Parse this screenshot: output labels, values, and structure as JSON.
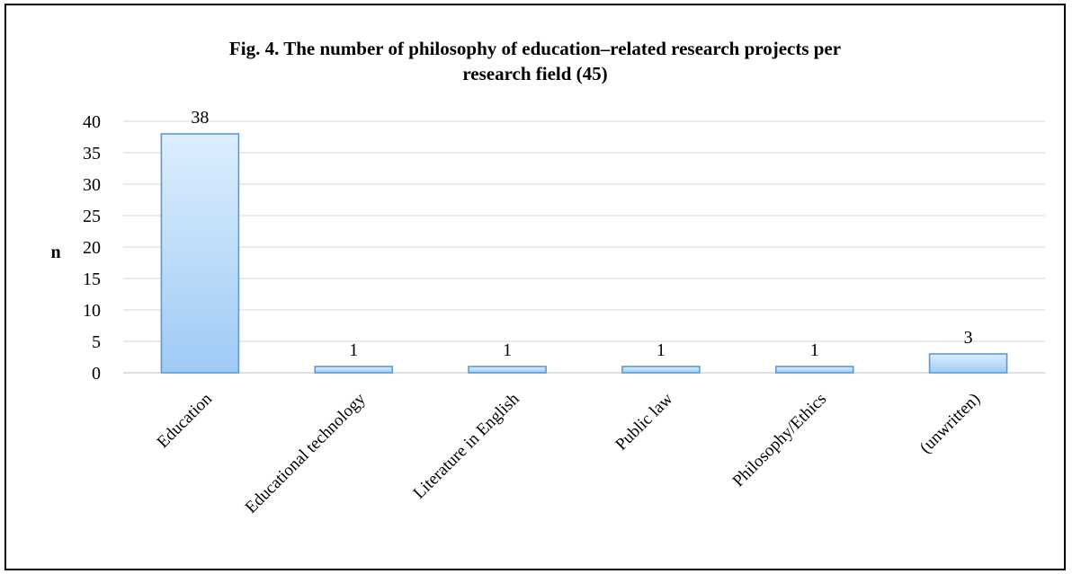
{
  "chart_data": {
    "type": "bar",
    "title": "Fig. 4. The number of philosophy of education–related research projects per research field (45)",
    "title_lines": [
      "Fig. 4. The number of philosophy of education–related research projects per",
      "research field (45)"
    ],
    "xlabel": "",
    "ylabel": "n",
    "ylim": [
      0,
      40
    ],
    "yticks": [
      0,
      5,
      10,
      15,
      20,
      25,
      30,
      35,
      40
    ],
    "categories": [
      "Education",
      "Educational technology",
      "Literature in English",
      "Public law",
      "Philosophy/Ethics",
      "(unwritten)"
    ],
    "values": [
      38,
      1,
      1,
      1,
      1,
      3
    ],
    "grid": true,
    "legend": "none",
    "colors": {
      "bar_top": "#ddeeff",
      "bar_bottom": "#9ecbf5",
      "bar_stroke": "#5b9bd5",
      "grid": "#d9d9d9",
      "axis": "#bfbfbf"
    }
  }
}
